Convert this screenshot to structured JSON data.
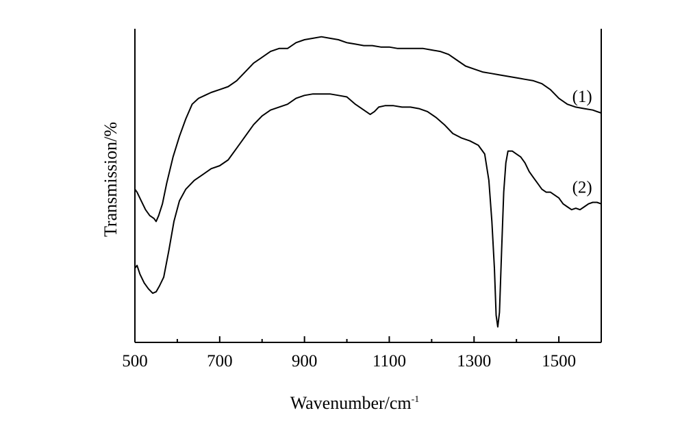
{
  "chart_data": {
    "type": "line",
    "title": "",
    "xlabel": "Wavenumber/cm",
    "xlabel_sup": "-1",
    "ylabel": "Transmission/%",
    "xlim": [
      500,
      1600
    ],
    "ylim": [
      0,
      100
    ],
    "x_ticks": [
      500,
      700,
      900,
      1100,
      1300,
      1500
    ],
    "y_ticks_shown": false,
    "grid": false,
    "series": [
      {
        "name": "(1)",
        "color": "#000000",
        "points": [
          [
            500,
            49
          ],
          [
            505,
            48
          ],
          [
            515,
            45
          ],
          [
            525,
            42
          ],
          [
            535,
            40
          ],
          [
            545,
            39
          ],
          [
            550,
            38
          ],
          [
            556,
            40
          ],
          [
            565,
            44
          ],
          [
            575,
            51
          ],
          [
            590,
            60
          ],
          [
            605,
            67
          ],
          [
            620,
            73
          ],
          [
            635,
            78
          ],
          [
            650,
            80
          ],
          [
            665,
            81
          ],
          [
            680,
            82
          ],
          [
            700,
            83
          ],
          [
            720,
            84
          ],
          [
            740,
            86
          ],
          [
            760,
            89
          ],
          [
            780,
            92
          ],
          [
            800,
            94
          ],
          [
            820,
            96
          ],
          [
            840,
            97
          ],
          [
            860,
            97
          ],
          [
            870,
            98
          ],
          [
            880,
            99
          ],
          [
            900,
            100
          ],
          [
            920,
            100.5
          ],
          [
            940,
            101
          ],
          [
            960,
            100.5
          ],
          [
            980,
            100
          ],
          [
            1000,
            99
          ],
          [
            1020,
            98.5
          ],
          [
            1040,
            98
          ],
          [
            1060,
            98
          ],
          [
            1080,
            97.5
          ],
          [
            1100,
            97.5
          ],
          [
            1120,
            97
          ],
          [
            1140,
            97
          ],
          [
            1160,
            97
          ],
          [
            1180,
            97
          ],
          [
            1200,
            96.5
          ],
          [
            1220,
            96
          ],
          [
            1240,
            95
          ],
          [
            1260,
            93
          ],
          [
            1280,
            91
          ],
          [
            1300,
            90
          ],
          [
            1320,
            89
          ],
          [
            1340,
            88.5
          ],
          [
            1360,
            88
          ],
          [
            1380,
            87.5
          ],
          [
            1400,
            87
          ],
          [
            1420,
            86.5
          ],
          [
            1440,
            86
          ],
          [
            1460,
            85
          ],
          [
            1480,
            83
          ],
          [
            1500,
            80
          ],
          [
            1520,
            78
          ],
          [
            1540,
            77
          ],
          [
            1560,
            76.5
          ],
          [
            1580,
            76
          ],
          [
            1590,
            75.5
          ],
          [
            1600,
            75
          ]
        ]
      },
      {
        "name": "(2)",
        "color": "#000000",
        "points": [
          [
            500,
            22
          ],
          [
            505,
            23
          ],
          [
            512,
            20
          ],
          [
            522,
            17
          ],
          [
            532,
            15
          ],
          [
            542,
            13.5
          ],
          [
            550,
            14
          ],
          [
            558,
            16
          ],
          [
            568,
            19
          ],
          [
            580,
            28
          ],
          [
            592,
            38
          ],
          [
            605,
            45
          ],
          [
            620,
            49
          ],
          [
            640,
            52
          ],
          [
            660,
            54
          ],
          [
            680,
            56
          ],
          [
            700,
            57
          ],
          [
            720,
            59
          ],
          [
            740,
            63
          ],
          [
            760,
            67
          ],
          [
            780,
            71
          ],
          [
            800,
            74
          ],
          [
            820,
            76
          ],
          [
            840,
            77
          ],
          [
            860,
            78
          ],
          [
            880,
            80
          ],
          [
            900,
            81
          ],
          [
            920,
            81.5
          ],
          [
            940,
            81.5
          ],
          [
            960,
            81.5
          ],
          [
            980,
            81
          ],
          [
            1000,
            80.5
          ],
          [
            1020,
            78
          ],
          [
            1040,
            76
          ],
          [
            1055,
            74.5
          ],
          [
            1065,
            75.5
          ],
          [
            1075,
            77
          ],
          [
            1090,
            77.5
          ],
          [
            1110,
            77.5
          ],
          [
            1130,
            77
          ],
          [
            1150,
            77
          ],
          [
            1170,
            76.5
          ],
          [
            1190,
            75.5
          ],
          [
            1210,
            73.5
          ],
          [
            1230,
            71
          ],
          [
            1250,
            68
          ],
          [
            1270,
            66.5
          ],
          [
            1290,
            65.5
          ],
          [
            1310,
            64
          ],
          [
            1325,
            61
          ],
          [
            1335,
            52
          ],
          [
            1342,
            38
          ],
          [
            1348,
            22
          ],
          [
            1352,
            6
          ],
          [
            1356,
            2
          ],
          [
            1360,
            7
          ],
          [
            1365,
            28
          ],
          [
            1370,
            48
          ],
          [
            1375,
            58
          ],
          [
            1380,
            62
          ],
          [
            1390,
            62
          ],
          [
            1400,
            61
          ],
          [
            1410,
            60
          ],
          [
            1420,
            58
          ],
          [
            1430,
            55
          ],
          [
            1440,
            53
          ],
          [
            1450,
            51
          ],
          [
            1460,
            49
          ],
          [
            1470,
            48
          ],
          [
            1480,
            48
          ],
          [
            1490,
            47
          ],
          [
            1500,
            46
          ],
          [
            1510,
            44
          ],
          [
            1520,
            43
          ],
          [
            1530,
            42
          ],
          [
            1540,
            42.5
          ],
          [
            1550,
            42
          ],
          [
            1560,
            43
          ],
          [
            1570,
            44
          ],
          [
            1580,
            44.5
          ],
          [
            1590,
            44.5
          ],
          [
            1600,
            44
          ]
        ]
      }
    ]
  }
}
